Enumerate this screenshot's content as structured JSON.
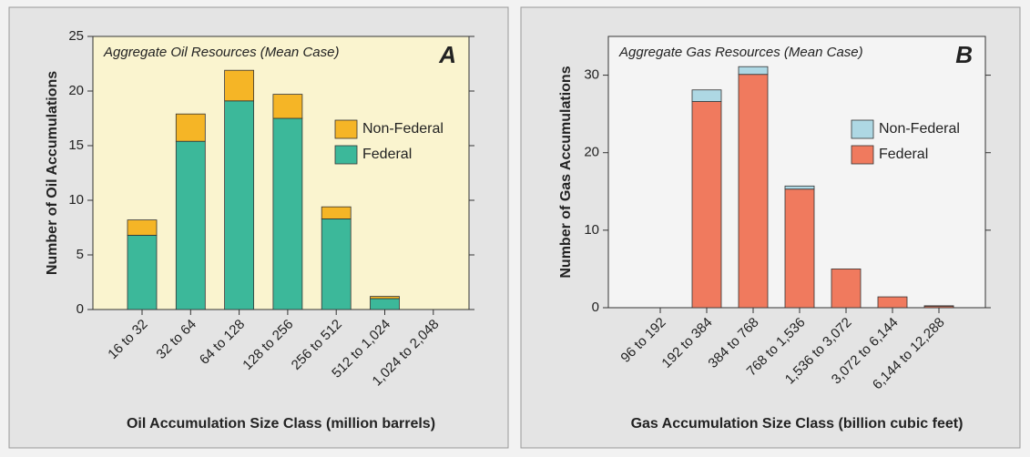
{
  "chart_data": [
    {
      "type": "stacked_bar",
      "annotation": "Aggregate Oil Resources (Mean Case)",
      "panel_label": "A",
      "x_label": "Oil Accumulation Size Class (million barrels)",
      "y_label": "Number of Oil Accumulations",
      "categories": [
        "16 to 32",
        "32 to 64",
        "64 to 128",
        "128 to 256",
        "256 to 512",
        "512 to 1,024",
        "1,024 to 2,048"
      ],
      "series": [
        {
          "name": "Federal",
          "color": "#3cb89a",
          "values": [
            6.8,
            15.4,
            19.1,
            17.5,
            8.3,
            1.0,
            0
          ]
        },
        {
          "name": "Non-Federal",
          "color": "#f5b526",
          "values": [
            1.4,
            2.5,
            2.8,
            2.2,
            1.1,
            0.2,
            0
          ]
        }
      ],
      "ylim": [
        0,
        25
      ],
      "yticks": [
        0,
        5,
        10,
        15,
        20,
        25
      ],
      "plot_background": "#faf4cf"
    },
    {
      "type": "stacked_bar",
      "annotation": "Aggregate Gas Resources (Mean Case)",
      "panel_label": "B",
      "x_label": "Gas Accumulation Size Class (billion cubic feet)",
      "y_label": "Number of Gas Accumulations",
      "categories": [
        "96 to 192",
        "192 to 384",
        "384 to 768",
        "768 to 1,536",
        "1,536 to 3,072",
        "3,072 to 6,144",
        "6,144 to 12,288"
      ],
      "series": [
        {
          "name": "Federal",
          "color": "#f07a5e",
          "values": [
            0,
            26.6,
            30.1,
            15.3,
            5.0,
            1.4,
            0.2
          ]
        },
        {
          "name": "Non-Federal",
          "color": "#aed8e4",
          "values": [
            0,
            1.5,
            1.0,
            0.4,
            0,
            0,
            0.05
          ]
        }
      ],
      "ylim": [
        0,
        35
      ],
      "yticks": [
        0,
        10,
        20,
        30
      ],
      "plot_background": "#f4f4f4"
    }
  ]
}
